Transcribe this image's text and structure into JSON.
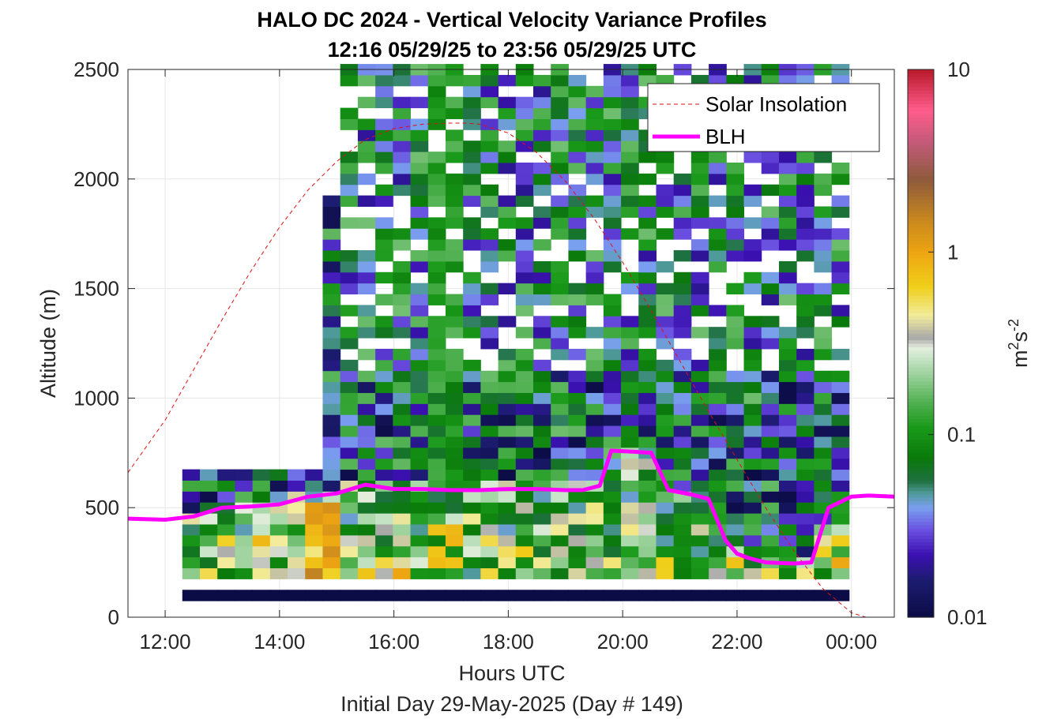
{
  "chart_data": {
    "type": "heatmap",
    "title": "HALO DC 2024 - Vertical Velocity Variance Profiles",
    "subtitle": "12:16 05/29/25 to 23:56 05/29/25  UTC",
    "xlabel": "Hours UTC",
    "xlabel_note": "Initial Day 29-May-2025 (Day # 149)",
    "ylabel": "Altitude (m)",
    "colorbar_label_base": "m",
    "colorbar_label_exp1": "2",
    "colorbar_label_mid": "s",
    "colorbar_label_exp2": "-2",
    "x_range_hours": [
      11.35,
      24.75
    ],
    "ylim": [
      0,
      2500
    ],
    "x_ticks": [
      "12:00",
      "14:00",
      "16:00",
      "18:00",
      "20:00",
      "22:00",
      "00:00"
    ],
    "x_tick_hours": [
      12,
      14,
      16,
      18,
      20,
      22,
      24
    ],
    "y_ticks": [
      "0",
      "500",
      "1000",
      "1500",
      "2000",
      "2500"
    ],
    "y_tick_values": [
      0,
      500,
      1000,
      1500,
      2000,
      2500
    ],
    "colorbar_ticks": [
      "0.01",
      "0.1",
      "1",
      "10"
    ],
    "colorbar_tick_values": [
      0.01,
      0.1,
      1,
      10
    ],
    "color_scale": "log",
    "clim": [
      0.01,
      10
    ],
    "grid": true,
    "legend_position": "top-right",
    "colormap": [
      {
        "v": 0.01,
        "c": "#0b0b45"
      },
      {
        "v": 0.016,
        "c": "#1c1c70"
      },
      {
        "v": 0.022,
        "c": "#3a10b0"
      },
      {
        "v": 0.03,
        "c": "#6a4fe0"
      },
      {
        "v": 0.04,
        "c": "#7aa0f0"
      },
      {
        "v": 0.048,
        "c": "#4f9a9a"
      },
      {
        "v": 0.056,
        "c": "#1e7040"
      },
      {
        "v": 0.075,
        "c": "#0a7a0a"
      },
      {
        "v": 0.11,
        "c": "#1a9a1a"
      },
      {
        "v": 0.15,
        "c": "#50b050"
      },
      {
        "v": 0.21,
        "c": "#98d098"
      },
      {
        "v": 0.27,
        "c": "#cce6cc"
      },
      {
        "v": 0.3,
        "c": "#e6eedd"
      },
      {
        "v": 0.34,
        "c": "#a8a8a8"
      },
      {
        "v": 0.45,
        "c": "#f2ec9c"
      },
      {
        "v": 0.65,
        "c": "#f0cf1a"
      },
      {
        "v": 1.0,
        "c": "#eda512"
      },
      {
        "v": 1.5,
        "c": "#c9881e"
      },
      {
        "v": 2.5,
        "c": "#8e5a3c"
      },
      {
        "v": 4.0,
        "c": "#c25a78"
      },
      {
        "v": 6.0,
        "c": "#ff5c8c"
      },
      {
        "v": 10.0,
        "c": "#b81a2a"
      }
    ],
    "series": [
      {
        "name": "Solar Insolation",
        "color": "#dd1111",
        "style": "dashed",
        "x": [
          11.35,
          12.0,
          12.5,
          13.0,
          13.5,
          14.0,
          14.5,
          15.0,
          15.5,
          16.0,
          16.5,
          17.0,
          17.25,
          17.5,
          18.0,
          18.5,
          19.0,
          19.5,
          20.0,
          20.5,
          21.0,
          21.5,
          22.0,
          22.5,
          23.0,
          23.5,
          24.0,
          24.25,
          24.4
        ],
        "y": [
          660,
          900,
          1130,
          1360,
          1580,
          1780,
          1950,
          2080,
          2180,
          2230,
          2250,
          2255,
          2255,
          2250,
          2210,
          2120,
          1990,
          1820,
          1620,
          1400,
          1170,
          940,
          720,
          500,
          300,
          130,
          20,
          0,
          0
        ]
      },
      {
        "name": "BLH",
        "color": "#ff00ff",
        "style": "solid",
        "x": [
          11.35,
          12.0,
          12.5,
          13.0,
          13.5,
          14.0,
          14.5,
          15.0,
          15.5,
          16.0,
          16.5,
          17.0,
          17.5,
          18.0,
          18.5,
          19.0,
          19.3,
          19.6,
          19.8,
          20.2,
          20.5,
          20.8,
          21.2,
          21.5,
          21.8,
          22.0,
          22.2,
          22.5,
          23.0,
          23.3,
          23.6,
          24.0,
          24.3,
          24.75
        ],
        "y": [
          450,
          445,
          460,
          500,
          505,
          515,
          550,
          565,
          605,
          585,
          585,
          580,
          580,
          585,
          585,
          580,
          580,
          600,
          760,
          755,
          750,
          580,
          560,
          540,
          350,
          290,
          270,
          250,
          245,
          250,
          500,
          550,
          555,
          550
        ]
      }
    ]
  },
  "legend": {
    "solar_label": "Solar Insolation",
    "blh_label": "BLH"
  }
}
